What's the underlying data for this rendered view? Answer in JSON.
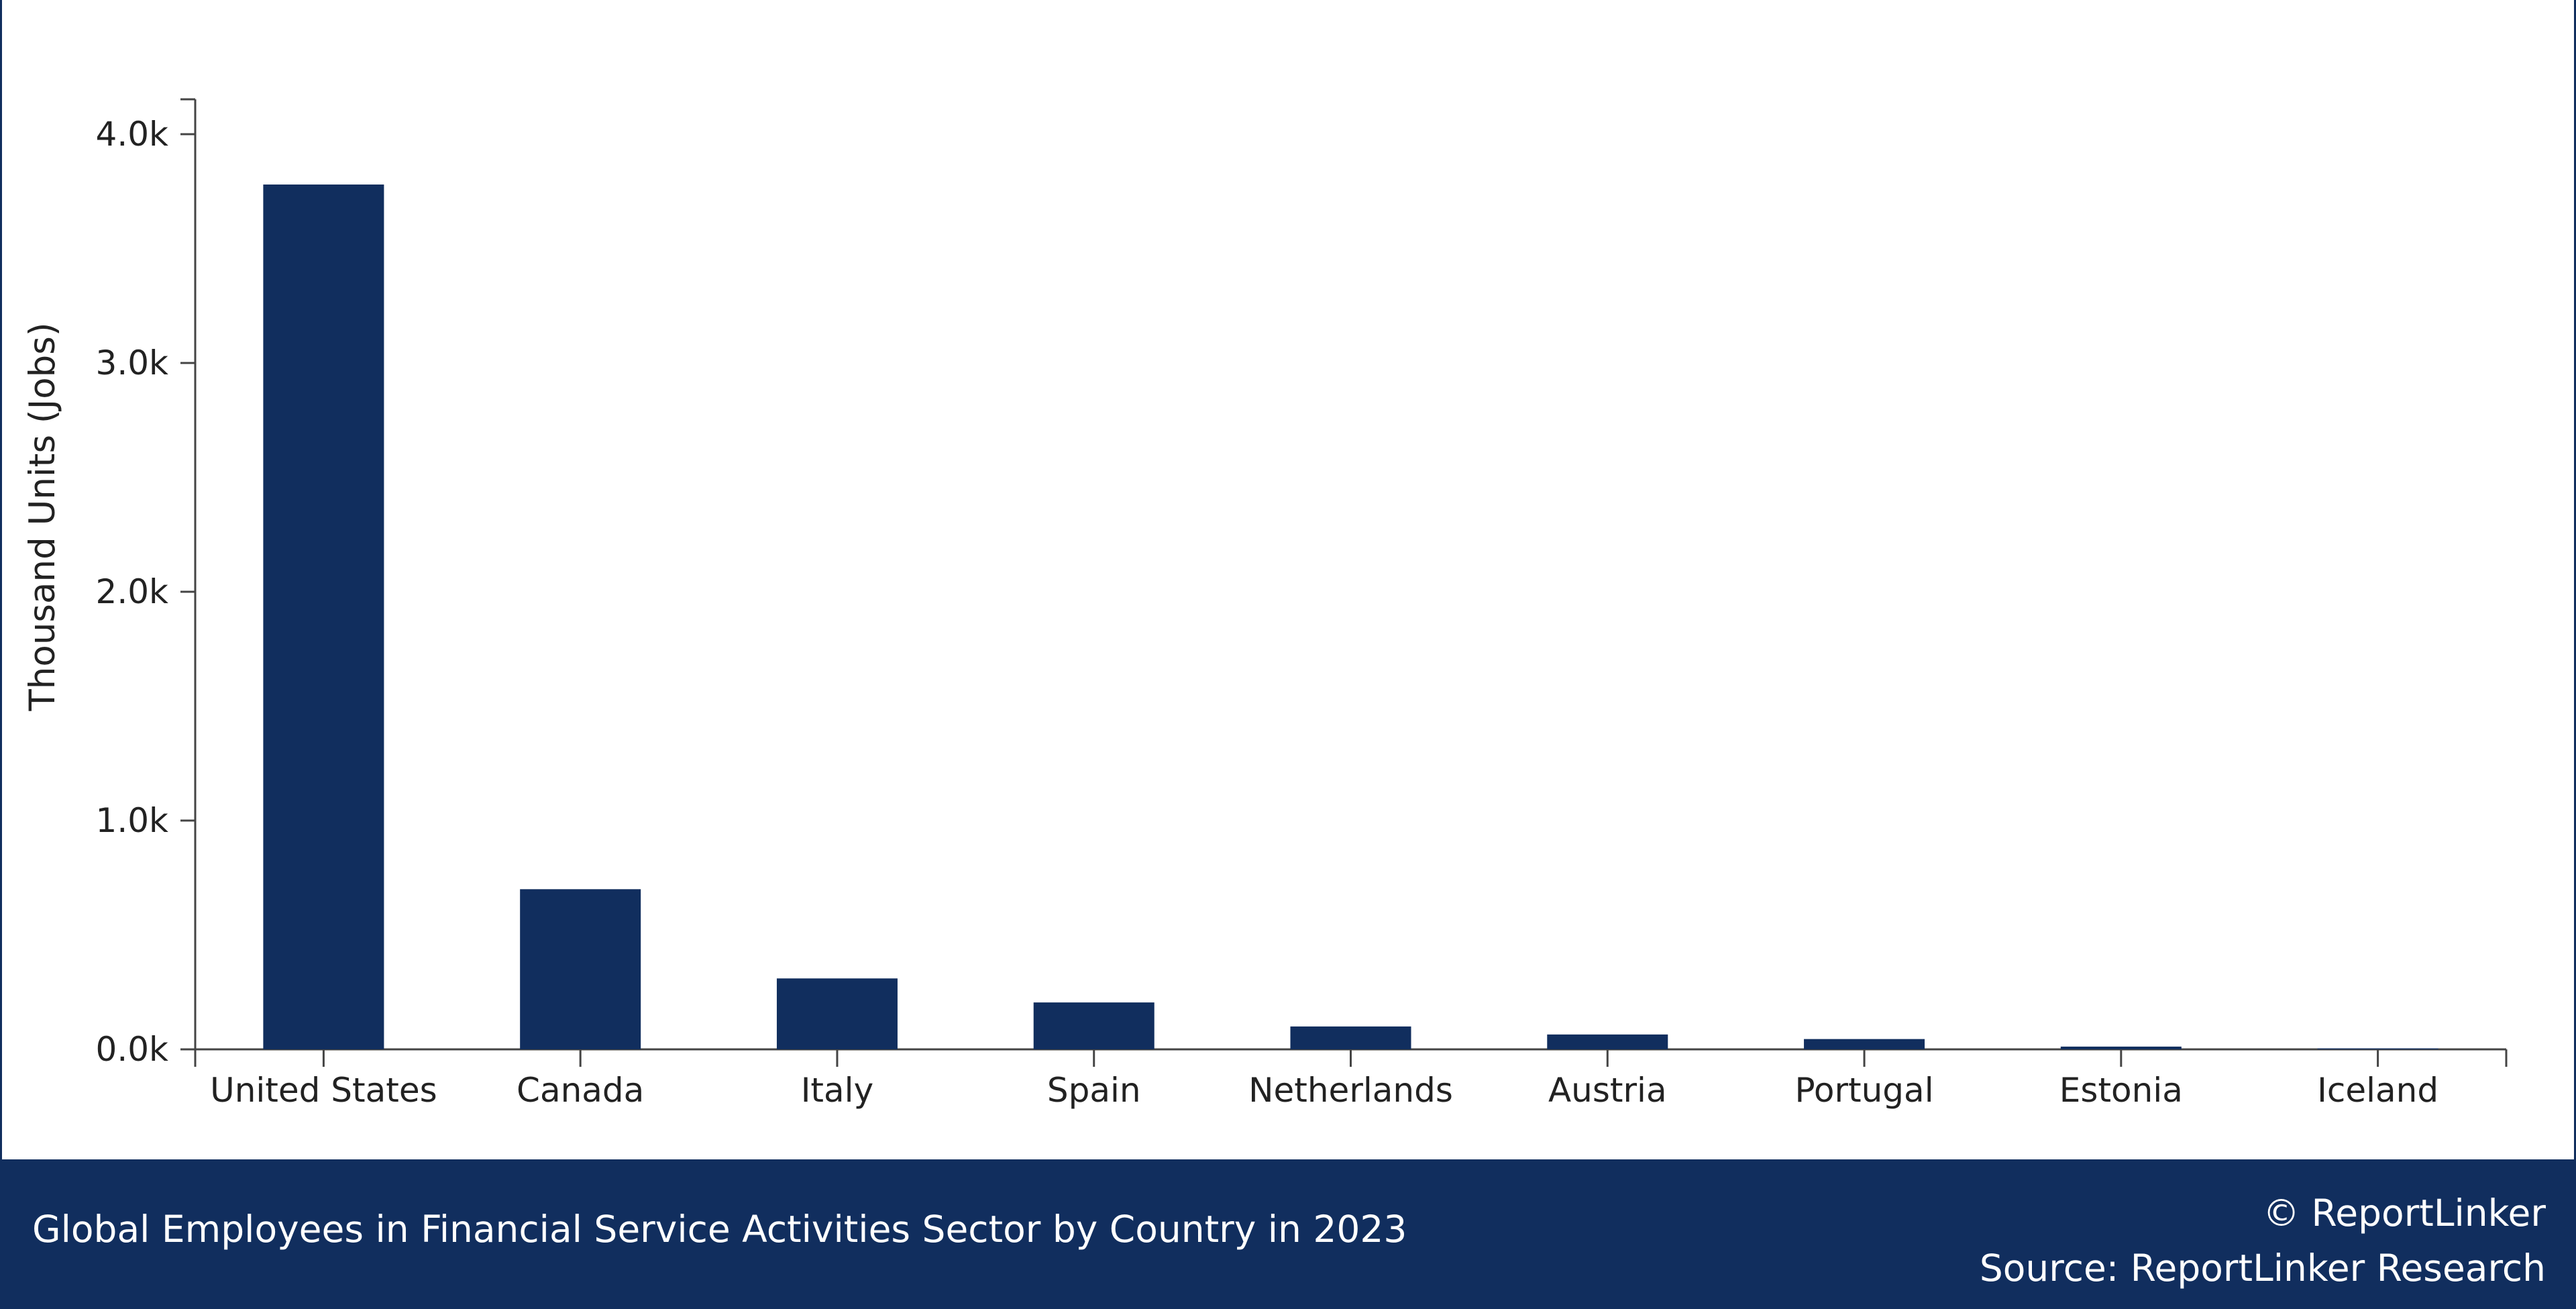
{
  "chart_data": {
    "type": "bar",
    "categories": [
      "United States",
      "Canada",
      "Italy",
      "Spain",
      "Netherlands",
      "Austria",
      "Portugal",
      "Estonia",
      "Iceland"
    ],
    "values": [
      3780,
      700,
      310,
      205,
      100,
      65,
      45,
      12,
      4
    ],
    "ylabel": "Thousand Units (Jobs)",
    "xlabel": "",
    "ylim": [
      0,
      4000
    ],
    "yticks": [
      "0.0k",
      "1.0k",
      "2.0k",
      "3.0k",
      "4.0k"
    ],
    "grid": false,
    "bar_color": "#112e5e"
  },
  "footer": {
    "title": "Global Employees in Financial Service Activities Sector by Country in 2023",
    "copyright": "© ReportLinker",
    "source": "Source:  ReportLinker Research"
  }
}
